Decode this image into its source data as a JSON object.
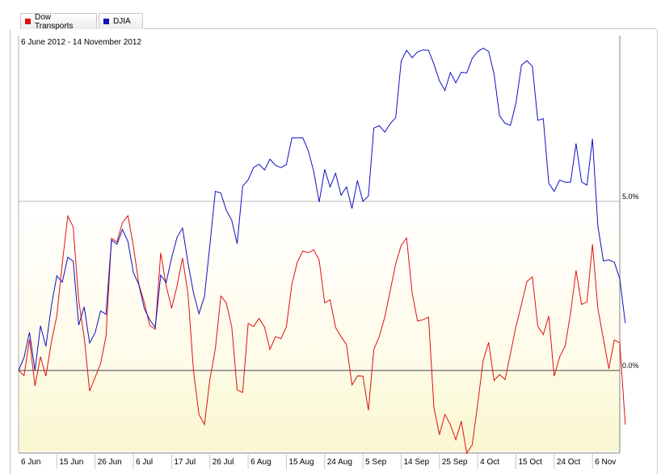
{
  "legend": [
    {
      "label": "Dow Transports",
      "color": "#e01010"
    },
    {
      "label": "DJIA",
      "color": "#1010c0"
    }
  ],
  "chart_data": {
    "type": "line",
    "subtitle": "6 June 2012 - 14 November 2012",
    "y_ticks": [
      {
        "value": 5.0,
        "label": "5.0%"
      },
      {
        "value": 0.0,
        "label": "0.0%"
      }
    ],
    "ylim": [
      -2.4,
      10.0
    ],
    "x_labels": [
      "6 Jun",
      "15 Jun",
      "26 Jun",
      "6 Jul",
      "17 Jul",
      "26 Jul",
      "6 Aug",
      "15 Aug",
      "24 Aug",
      "5 Sep",
      "14 Sep",
      "25 Sep",
      "4 Oct",
      "15 Oct",
      "24 Oct",
      "6 Nov"
    ],
    "x_label_positions": [
      0,
      7,
      14,
      21,
      28,
      35,
      42,
      49,
      56,
      63,
      70,
      77,
      84,
      91,
      98,
      105
    ],
    "n_points": 111,
    "series": [
      {
        "name": "Dow Transports",
        "color": "#e01010",
        "values": [
          0.0,
          -0.15,
          0.92,
          -0.46,
          0.41,
          -0.17,
          0.85,
          1.61,
          3.17,
          4.57,
          4.24,
          2.07,
          0.98,
          -0.61,
          -0.2,
          0.2,
          1.02,
          3.91,
          3.8,
          4.37,
          4.58,
          3.69,
          2.55,
          2.01,
          1.33,
          1.22,
          3.48,
          2.51,
          1.84,
          2.5,
          3.33,
          2.25,
          0.0,
          -1.3,
          -1.6,
          -0.27,
          0.64,
          2.2,
          2.0,
          1.29,
          -0.58,
          -0.65,
          1.39,
          1.3,
          1.54,
          1.28,
          0.62,
          1.0,
          0.94,
          1.29,
          2.55,
          3.2,
          3.53,
          3.48,
          3.57,
          3.26,
          2.0,
          2.09,
          1.27,
          1.0,
          0.76,
          -0.43,
          -0.16,
          -0.17,
          -1.18,
          0.62,
          1.01,
          1.58,
          2.36,
          3.15,
          3.7,
          3.92,
          2.3,
          1.46,
          1.5,
          1.58,
          -1.1,
          -1.9,
          -1.3,
          -1.6,
          -2.05,
          -1.5,
          -2.45,
          -2.2,
          -1.0,
          0.3,
          0.83,
          -0.3,
          -0.12,
          -0.27,
          0.5,
          1.3,
          1.95,
          2.63,
          2.77,
          1.31,
          1.06,
          1.61,
          -0.17,
          0.4,
          0.72,
          1.7,
          2.96,
          1.95,
          2.03,
          3.73,
          1.83,
          0.93,
          0.05,
          0.9,
          0.82,
          -1.6
        ]
      },
      {
        "name": "DJIA",
        "color": "#1010c0",
        "values": [
          0.0,
          0.39,
          1.13,
          0.0,
          1.32,
          0.71,
          1.91,
          2.8,
          2.61,
          3.35,
          3.23,
          1.34,
          1.88,
          0.81,
          1.12,
          1.76,
          1.66,
          3.86,
          3.73,
          4.17,
          3.82,
          2.9,
          2.54,
          1.83,
          1.5,
          1.27,
          2.82,
          2.6,
          3.33,
          3.94,
          4.21,
          3.17,
          2.3,
          1.68,
          2.19,
          3.7,
          5.3,
          5.25,
          4.74,
          4.44,
          3.75,
          5.45,
          5.64,
          6.0,
          6.1,
          5.93,
          6.25,
          6.07,
          6.0,
          6.09,
          6.88,
          6.88,
          6.88,
          6.5,
          5.89,
          4.98,
          5.95,
          5.43,
          5.83,
          5.18,
          5.43,
          4.79,
          5.62,
          5.0,
          5.16,
          7.17,
          7.24,
          7.05,
          7.3,
          7.48,
          9.15,
          9.47,
          9.25,
          9.42,
          9.48,
          9.47,
          9.06,
          8.57,
          8.28,
          8.81,
          8.51,
          8.82,
          8.8,
          9.23,
          9.43,
          9.53,
          9.44,
          8.77,
          7.53,
          7.31,
          7.25,
          7.91,
          9.03,
          9.16,
          9.0,
          7.4,
          7.45,
          5.54,
          5.3,
          5.63,
          5.57,
          5.57,
          6.71,
          5.58,
          5.48,
          6.85,
          4.27,
          3.24,
          3.27,
          3.2,
          2.71,
          1.4
        ]
      }
    ]
  }
}
